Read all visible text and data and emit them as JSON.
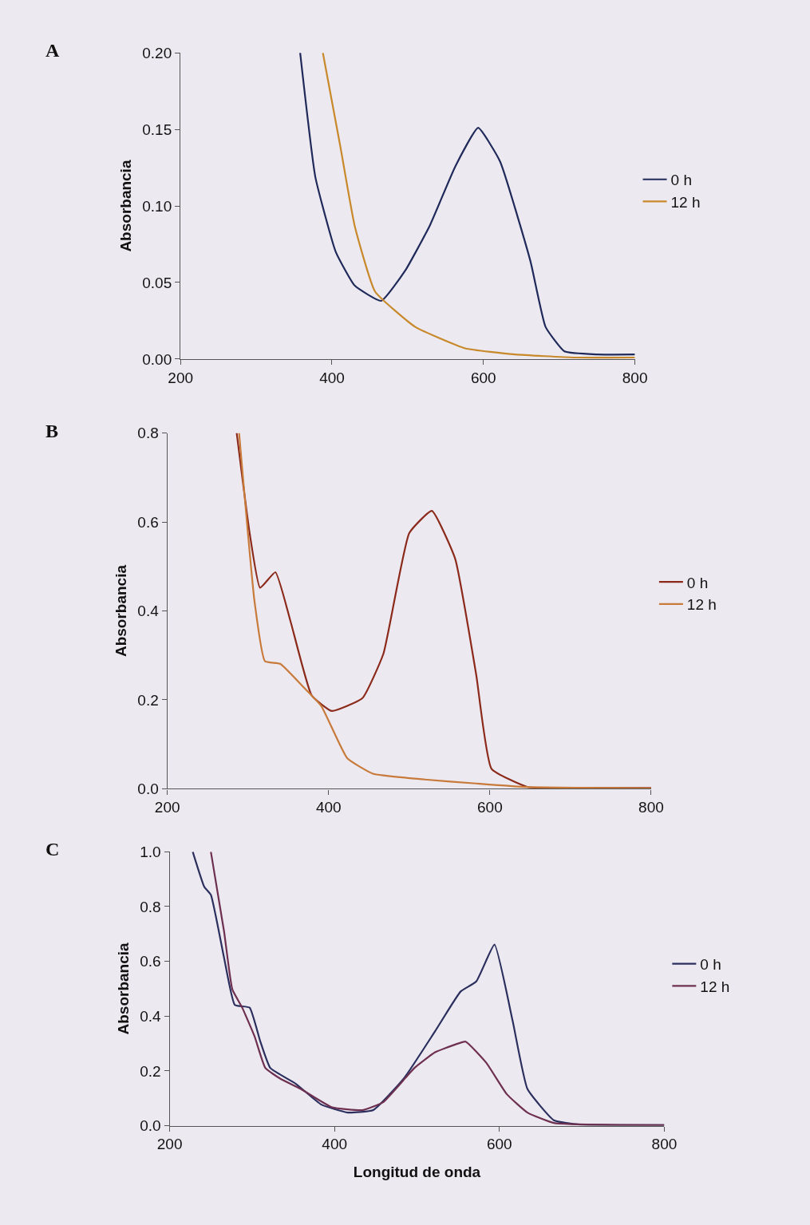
{
  "chart_data": [
    {
      "type": "line",
      "title": "A",
      "ylabel": "Absorbancia",
      "xlim": [
        200,
        800
      ],
      "xticks": [
        200,
        400,
        600,
        800
      ],
      "ylim": [
        0,
        0.2
      ],
      "yticks": [
        {
          "value": 0,
          "label": "0.00"
        },
        0.05,
        {
          "value": 0.1,
          "label": "0.10"
        },
        0.15,
        {
          "value": 0.2,
          "label": "0.20"
        }
      ],
      "grid": false,
      "legend": "right",
      "marker": "none",
      "line_style": "solid",
      "series": [
        {
          "name": "0 h",
          "color": "#1f2a5a",
          "x": [
            358,
            378,
            405,
            430,
            465,
            497,
            529,
            563,
            593,
            622,
            662,
            682,
            707,
            750,
            800
          ],
          "values": [
            0.2,
            0.119,
            0.07,
            0.048,
            0.038,
            0.058,
            0.087,
            0.126,
            0.151,
            0.129,
            0.064,
            0.021,
            0.005,
            0.003,
            0.003
          ]
        },
        {
          "name": "12 h",
          "color": "#c8892a",
          "x": [
            388,
            411,
            430,
            457,
            510,
            576,
            642,
            720,
            800
          ],
          "values": [
            0.2,
            0.139,
            0.087,
            0.044,
            0.021,
            0.007,
            0.003,
            0.001,
            0.001
          ]
        }
      ]
    },
    {
      "type": "line",
      "title": "B",
      "ylabel": "Absorbancia",
      "xlim": [
        200,
        800
      ],
      "xticks": [
        200,
        400,
        600,
        800
      ],
      "ylim": [
        0,
        0.8
      ],
      "yticks": [
        {
          "value": 0,
          "label": "0.0"
        },
        0.2,
        0.4,
        0.6,
        0.8
      ],
      "grid": false,
      "legend": "right",
      "marker": "none",
      "line_style": "solid",
      "series": [
        {
          "name": "0 h",
          "color": "#8b2a1a",
          "x": [
            286,
            302,
            315,
            334,
            353,
            379,
            404,
            442,
            468,
            500,
            528,
            557,
            583,
            602,
            647,
            720,
            800
          ],
          "values": [
            0.8,
            0.576,
            0.452,
            0.487,
            0.375,
            0.21,
            0.175,
            0.204,
            0.304,
            0.575,
            0.625,
            0.517,
            0.257,
            0.045,
            0.004,
            0.002,
            0.002
          ]
        },
        {
          "name": "12 h",
          "color": "#c87a3a",
          "x": [
            289,
            308,
            321,
            340,
            366,
            391,
            423,
            455,
            519,
            583,
            647,
            800
          ],
          "values": [
            0.8,
            0.423,
            0.287,
            0.281,
            0.234,
            0.186,
            0.069,
            0.034,
            0.021,
            0.012,
            0.004,
            0.001
          ]
        }
      ]
    },
    {
      "type": "line",
      "title": "C",
      "xlabel": "Longitud de onda",
      "ylabel": "Absorbancia",
      "xlim": [
        200,
        800
      ],
      "xticks": [
        200,
        400,
        600,
        800
      ],
      "ylim": [
        0,
        1.0
      ],
      "yticks": [
        {
          "value": 0,
          "label": "0.0"
        },
        0.2,
        0.4,
        0.6,
        0.8,
        {
          "value": 1,
          "label": "1.0"
        }
      ],
      "grid": false,
      "legend": "right",
      "marker": "none",
      "line_style": "solid",
      "series": [
        {
          "name": "0 h",
          "color": "#2a2f5e",
          "x": [
            228,
            242,
            250,
            266,
            279,
            297,
            310,
            322,
            353,
            384,
            416,
            447,
            484,
            522,
            553,
            572,
            594,
            616,
            634,
            666,
            697,
            800
          ],
          "values": [
            1.0,
            0.872,
            0.843,
            0.613,
            0.441,
            0.431,
            0.307,
            0.211,
            0.153,
            0.077,
            0.048,
            0.057,
            0.172,
            0.345,
            0.49,
            0.527,
            0.661,
            0.383,
            0.134,
            0.02,
            0.004,
            0.002
          ]
        },
        {
          "name": "12 h",
          "color": "#6e3050",
          "x": [
            250,
            266,
            276,
            288,
            303,
            316,
            334,
            359,
            397,
            434,
            459,
            497,
            522,
            547,
            559,
            584,
            609,
            634,
            666,
            800
          ],
          "values": [
            1.0,
            0.709,
            0.498,
            0.431,
            0.326,
            0.211,
            0.172,
            0.134,
            0.067,
            0.057,
            0.086,
            0.211,
            0.268,
            0.297,
            0.307,
            0.23,
            0.115,
            0.048,
            0.01,
            0.002
          ]
        }
      ]
    }
  ]
}
